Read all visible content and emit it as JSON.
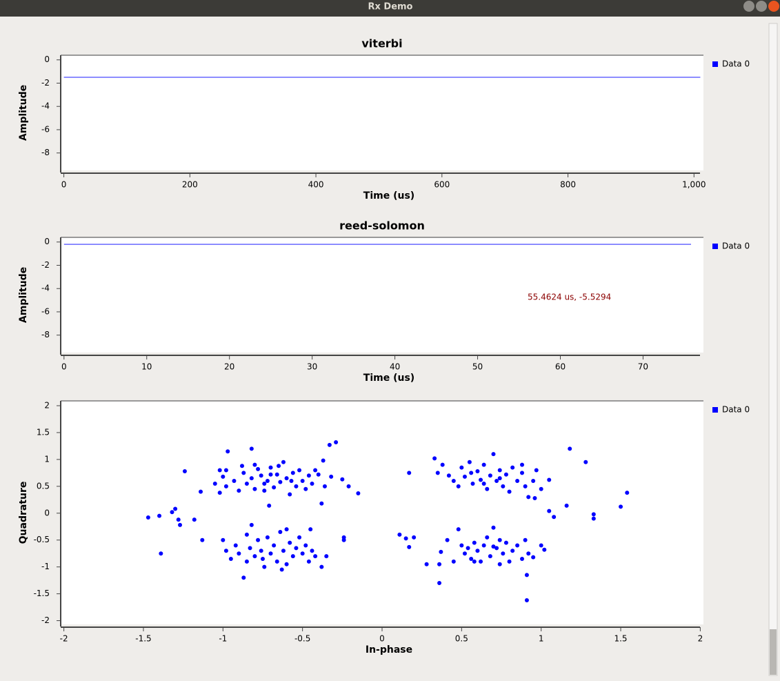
{
  "window": {
    "title": "Rx Demo"
  },
  "chart_data": [
    {
      "type": "line",
      "title": "viterbi",
      "xlabel": "Time (us)",
      "ylabel": "Amplitude",
      "xlim": [
        -5,
        1015
      ],
      "ylim": [
        -9.5,
        0.4
      ],
      "xticks": [
        0,
        200,
        400,
        600,
        800,
        {
          "value": 1000,
          "label": "1,000"
        }
      ],
      "yticks": [
        0,
        -2,
        -4,
        -6,
        -8
      ],
      "x": [
        0,
        1010
      ],
      "series": [
        {
          "name": "Data 0",
          "color": "#0000ff",
          "values": [
            -1.5,
            -1.5
          ]
        }
      ]
    },
    {
      "type": "line",
      "title": "reed-solomon",
      "xlabel": "Time (us)",
      "ylabel": "Amplitude",
      "xlim": [
        -0.4,
        77.3
      ],
      "ylim": [
        -9.5,
        0.4
      ],
      "xticks": [
        0,
        10,
        20,
        30,
        40,
        50,
        60,
        70
      ],
      "yticks": [
        0,
        -2,
        -4,
        -6,
        -8
      ],
      "x": [
        0,
        75.8
      ],
      "annotation": "55.4624 us, -5.5294",
      "series": [
        {
          "name": "Data 0",
          "color": "#0000ff",
          "values": [
            -0.2,
            -0.2
          ]
        }
      ]
    },
    {
      "type": "scatter",
      "xlabel": "In-phase",
      "ylabel": "Quadrature",
      "xlim": [
        -2.02,
        2.02
      ],
      "ylim": [
        -2.07,
        2.09
      ],
      "xticks": [
        -2,
        -1.5,
        -1,
        -0.5,
        0,
        0.5,
        1,
        1.5,
        2
      ],
      "yticks": [
        2,
        1.5,
        1,
        0.5,
        0,
        -0.5,
        -1,
        -1.5,
        -2
      ],
      "series": [
        {
          "name": "Data 0",
          "color": "#0000ff",
          "x": [
            -1.47,
            -1.4,
            -1.39,
            -1.32,
            -1.3,
            -1.28,
            -1.27,
            -1.24,
            -1.18,
            -1.14,
            -0.97,
            -0.82,
            -0.37,
            -0.33,
            -0.29,
            -0.25,
            -0.21,
            -0.15,
            -0.38,
            -0.71,
            -1.02,
            -0.98,
            -1.0,
            -1.05,
            -0.98,
            -1.02,
            -0.93,
            -0.9,
            -0.87,
            -0.85,
            -0.82,
            -0.8,
            -0.78,
            -0.76,
            -0.74,
            -0.72,
            -0.7,
            -0.68,
            -0.66,
            -0.64,
            -0.62,
            -0.6,
            -0.58,
            -0.56,
            -0.54,
            -0.52,
            -0.5,
            -0.48,
            -0.46,
            -0.44,
            -0.4,
            -0.36,
            -0.32,
            -0.42,
            -0.88,
            -0.8,
            -0.7,
            -0.65,
            -0.57,
            -0.74,
            -1.13,
            -1.0,
            -0.98,
            -0.95,
            -0.92,
            -0.9,
            -0.87,
            -0.85,
            -0.83,
            -0.82,
            -0.8,
            -0.78,
            -0.76,
            -0.74,
            -0.72,
            -0.7,
            -0.68,
            -0.66,
            -0.64,
            -0.62,
            -0.6,
            -0.58,
            -0.56,
            -0.54,
            -0.52,
            -0.5,
            -0.48,
            -0.46,
            -0.44,
            -0.42,
            -0.38,
            -0.35,
            -0.24,
            -0.24,
            -0.63,
            -0.75,
            -0.85,
            -0.6,
            -0.45,
            0.17,
            0.33,
            0.38,
            0.35,
            0.42,
            0.45,
            0.48,
            0.5,
            0.52,
            0.55,
            0.57,
            0.6,
            0.62,
            0.64,
            0.66,
            0.68,
            0.7,
            0.72,
            0.74,
            0.76,
            0.78,
            0.8,
            0.82,
            0.85,
            0.88,
            0.9,
            0.92,
            0.95,
            0.97,
            1.0,
            1.05,
            0.96,
            0.88,
            0.56,
            0.64,
            0.74,
            1.18,
            1.28,
            1.54,
            1.5,
            1.33,
            1.33,
            1.16,
            1.05,
            1.08,
            0.11,
            0.15,
            0.17,
            0.2,
            0.28,
            0.36,
            0.36,
            0.37,
            0.41,
            0.45,
            0.48,
            0.5,
            0.52,
            0.54,
            0.56,
            0.58,
            0.6,
            0.62,
            0.64,
            0.66,
            0.68,
            0.7,
            0.72,
            0.74,
            0.76,
            0.78,
            0.8,
            0.82,
            0.85,
            0.88,
            0.9,
            0.92,
            0.95,
            1.0,
            1.02,
            0.91,
            0.91,
            0.58,
            0.74,
            0.7
          ],
          "values": [
            -0.08,
            -0.05,
            -0.75,
            0.02,
            0.08,
            -0.12,
            -0.22,
            0.78,
            -0.12,
            0.4,
            1.15,
            1.2,
            0.98,
            1.27,
            1.32,
            0.63,
            0.5,
            0.37,
            0.18,
            0.14,
            0.8,
            0.8,
            0.68,
            0.55,
            0.5,
            0.38,
            0.6,
            0.42,
            0.75,
            0.55,
            0.65,
            0.45,
            0.82,
            0.7,
            0.55,
            0.6,
            0.85,
            0.48,
            0.72,
            0.58,
            0.95,
            0.65,
            0.35,
            0.75,
            0.5,
            0.8,
            0.6,
            0.45,
            0.7,
            0.55,
            0.72,
            0.5,
            0.68,
            0.8,
            0.88,
            0.9,
            0.72,
            0.88,
            0.6,
            0.42,
            -0.5,
            -0.5,
            -0.7,
            -0.85,
            -0.6,
            -0.75,
            -1.2,
            -0.4,
            -0.65,
            -0.22,
            -0.8,
            -0.5,
            -0.7,
            -1.0,
            -0.45,
            -0.75,
            -0.6,
            -0.9,
            -0.35,
            -0.7,
            -0.95,
            -0.55,
            -0.8,
            -0.65,
            -0.45,
            -0.75,
            -0.6,
            -0.9,
            -0.7,
            -0.8,
            -1.0,
            -0.8,
            -0.45,
            -0.5,
            -1.05,
            -0.85,
            -0.9,
            -0.3,
            -0.3,
            0.75,
            1.02,
            0.9,
            0.75,
            0.7,
            0.6,
            0.5,
            0.85,
            0.68,
            0.95,
            0.55,
            0.78,
            0.62,
            0.9,
            0.45,
            0.7,
            1.1,
            0.6,
            0.8,
            0.5,
            0.72,
            0.4,
            0.85,
            0.6,
            0.75,
            0.5,
            0.3,
            0.6,
            0.8,
            0.45,
            0.62,
            0.28,
            0.9,
            0.75,
            0.55,
            0.65,
            1.2,
            0.95,
            0.38,
            0.12,
            -0.02,
            -0.1,
            0.14,
            0.04,
            -0.07,
            -0.4,
            -0.47,
            -0.63,
            -0.45,
            -0.95,
            -0.95,
            -1.3,
            -0.72,
            -0.5,
            -0.9,
            -0.3,
            -0.6,
            -0.75,
            -0.65,
            -0.85,
            -0.55,
            -0.7,
            -0.9,
            -0.6,
            -0.45,
            -0.8,
            -0.27,
            -0.65,
            -0.5,
            -0.75,
            -0.55,
            -0.9,
            -0.7,
            -0.6,
            -0.85,
            -0.5,
            -0.75,
            -0.82,
            -0.6,
            -0.68,
            -1.15,
            -1.62,
            -0.9,
            -0.95,
            -0.62
          ]
        }
      ]
    }
  ]
}
